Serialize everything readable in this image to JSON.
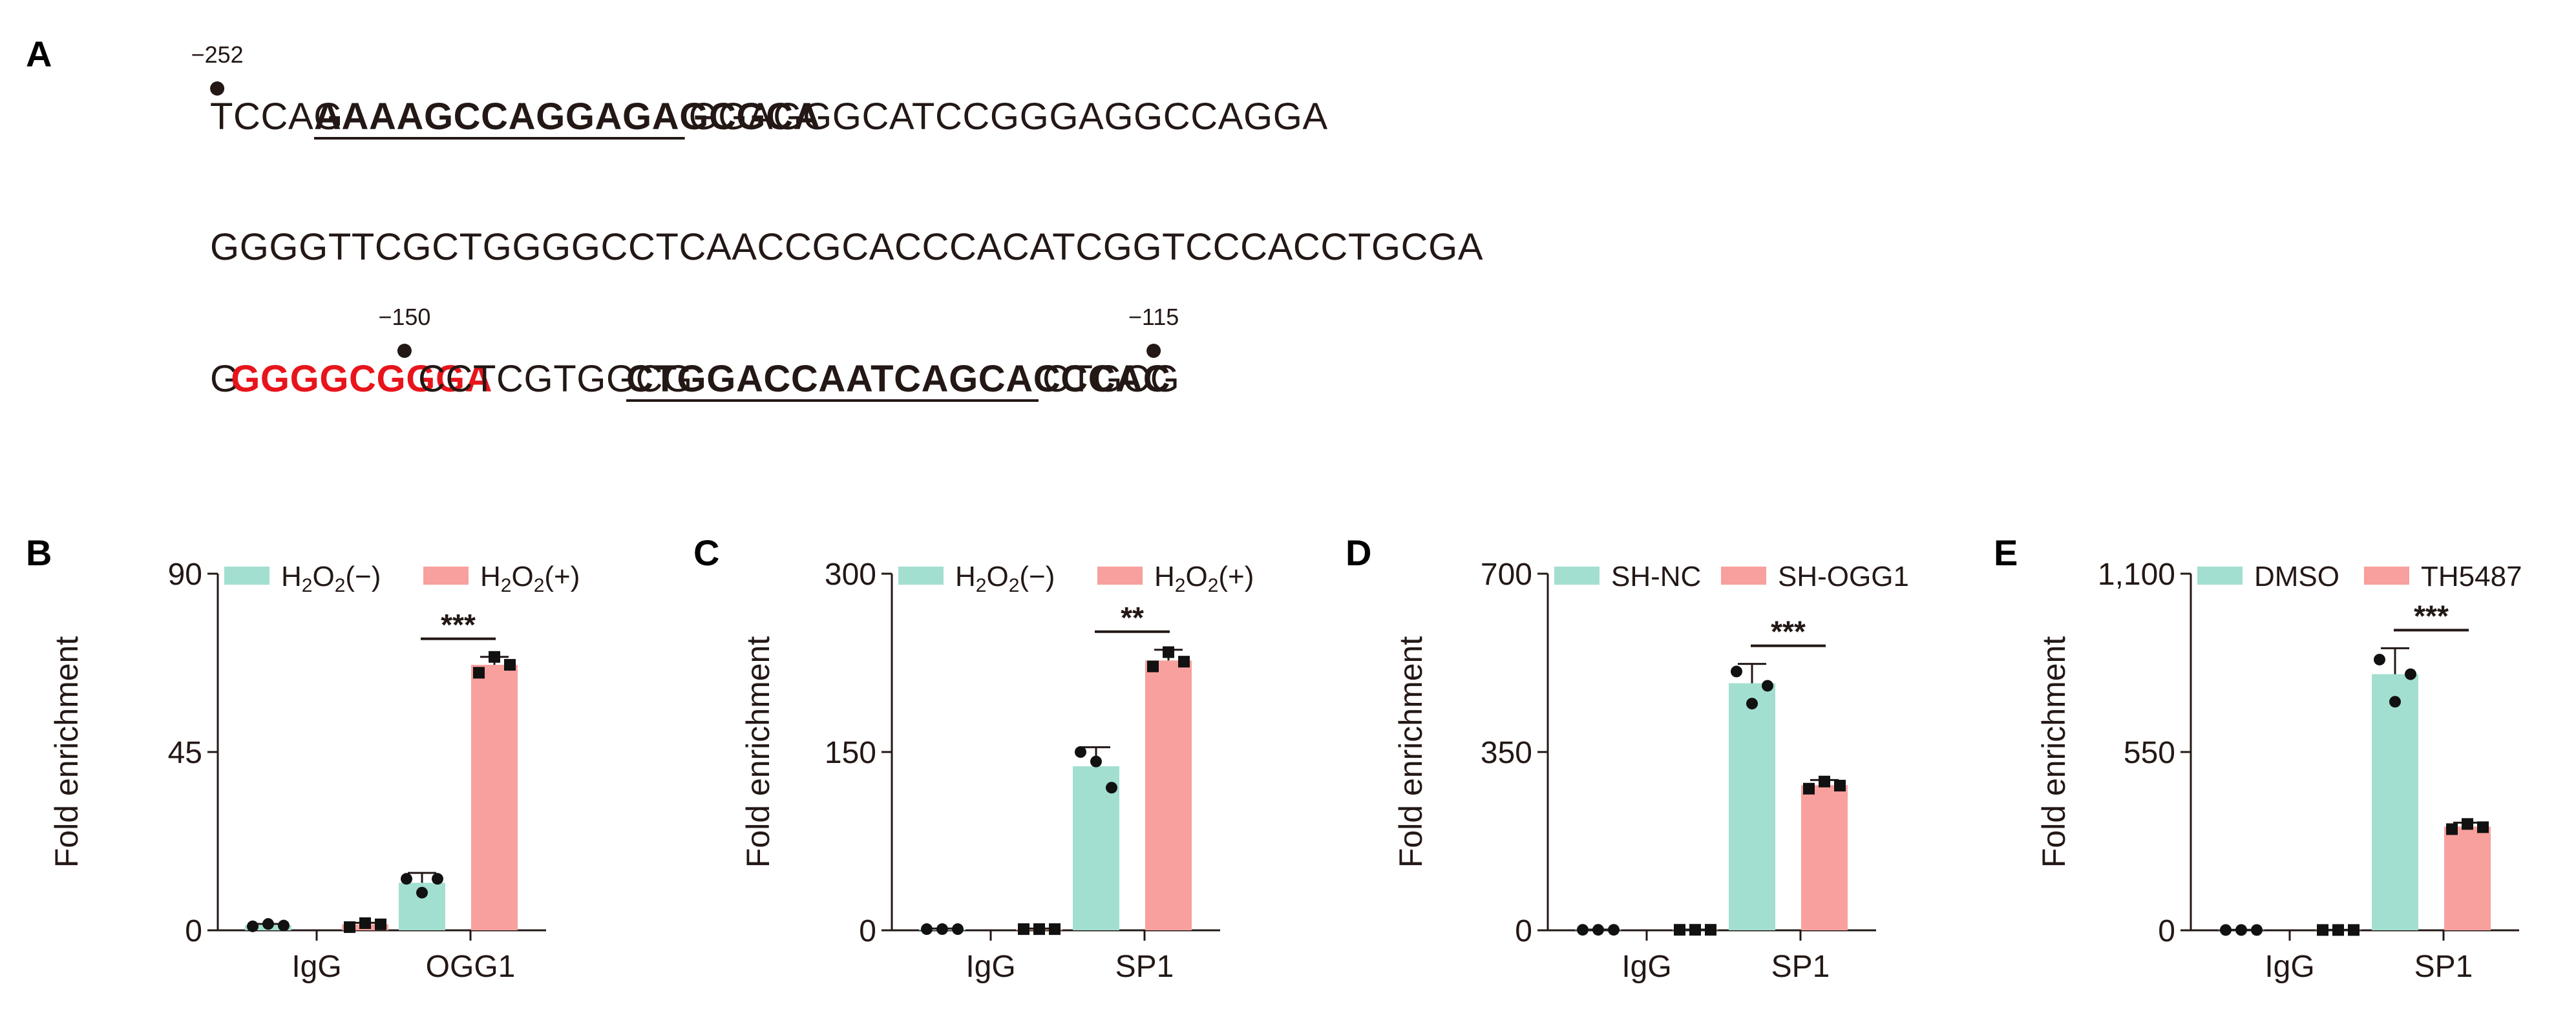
{
  "panel_labels": [
    "A",
    "B",
    "C",
    "D",
    "E"
  ],
  "sequence": {
    "lines": [
      [
        {
          "t": "TCCAG",
          "s": "plain"
        },
        {
          "t": "AAAAGCCAGGAGAGCGCA",
          "s": "primer"
        },
        {
          "t": "GGAGGGCATCCGGGAGGCCAGGA",
          "s": "plain"
        }
      ],
      [
        {
          "t": "GGGGTTCGCTGGGGCCTCAACCGCACCCACATCGGTCCCACCTGCGA",
          "s": "plain"
        }
      ],
      [
        {
          "t": "G",
          "s": "plain"
        },
        {
          "t": "GGGGCGGGA",
          "s": "sp1"
        },
        {
          "t": "CCTCGTGGCG",
          "s": "plain"
        },
        {
          "t": "CTGGACCAATCAGCACCCAC",
          "s": "primer"
        },
        {
          "t": "CTGCG",
          "s": "plain"
        }
      ]
    ],
    "markers": [
      {
        "label": "−252",
        "line": 0,
        "index": 0
      },
      {
        "label": "−150",
        "line": 2,
        "index": 9
      },
      {
        "label": "−115",
        "line": 2,
        "index": 45
      }
    ],
    "colors": {
      "plain": "#231815",
      "primer": "#231815",
      "sp1": "#e8141b"
    }
  },
  "colors": {
    "series1": "#a2dfd0",
    "series2": "#f8a09e",
    "axis": "#231815",
    "point": "#111111"
  },
  "chart_data": [
    {
      "panel": "B",
      "type": "bar",
      "ylabel": "Fold enrichment",
      "ylim": [
        0,
        90
      ],
      "yticks": [
        "0",
        "45",
        "90"
      ],
      "ytick_values": [
        0,
        45,
        90
      ],
      "categories": [
        "IgG",
        "OGG1"
      ],
      "series": [
        {
          "name": "H2O2(−)",
          "name_parts": [
            "H",
            "2",
            "O",
            "2",
            "(−)"
          ],
          "values": [
            1.3,
            12
          ],
          "error": [
            0.3,
            2.5
          ],
          "points": [
            [
              1.0,
              1.6,
              1.2
            ],
            [
              13,
              9.5,
              13
            ]
          ],
          "marker": "circle"
        },
        {
          "name": "H2O2(+)",
          "name_parts": [
            "H",
            "2",
            "O",
            "2",
            "(+)"
          ],
          "values": [
            1.5,
            67
          ],
          "error": [
            0.4,
            2.0
          ],
          "points": [
            [
              0.8,
              1.8,
              1.5
            ],
            [
              65,
              69,
              67
            ]
          ],
          "marker": "square"
        }
      ],
      "significance": [
        {
          "category": "OGG1",
          "label": "***"
        }
      ]
    },
    {
      "panel": "C",
      "type": "bar",
      "ylabel": "Fold enrichment",
      "ylim": [
        0,
        300
      ],
      "yticks": [
        "0",
        "150",
        "300"
      ],
      "ytick_values": [
        0,
        150,
        300
      ],
      "categories": [
        "IgG",
        "SP1"
      ],
      "series": [
        {
          "name": "H2O2(−)",
          "name_parts": [
            "H",
            "2",
            "O",
            "2",
            "(−)"
          ],
          "values": [
            1,
            138
          ],
          "error": [
            0.5,
            16
          ],
          "points": [
            [
              1,
              1,
              1
            ],
            [
              150,
              142,
              120
            ]
          ],
          "marker": "circle"
        },
        {
          "name": "H2O2(+)",
          "name_parts": [
            "H",
            "2",
            "O",
            "2",
            "(+)"
          ],
          "values": [
            1,
            227
          ],
          "error": [
            0.5,
            9
          ],
          "points": [
            [
              1,
              1,
              1
            ],
            [
              222,
              234,
              226
            ]
          ],
          "marker": "square"
        }
      ],
      "significance": [
        {
          "category": "SP1",
          "label": "**"
        }
      ]
    },
    {
      "panel": "D",
      "type": "bar",
      "ylabel": "Fold enrichment",
      "ylim": [
        0,
        700
      ],
      "yticks": [
        "0",
        "350",
        "700"
      ],
      "ytick_values": [
        0,
        350,
        700
      ],
      "categories": [
        "IgG",
        "SP1"
      ],
      "series": [
        {
          "name": "SH-NC",
          "values": [
            1,
            485
          ],
          "error": [
            0.5,
            38
          ],
          "points": [
            [
              1,
              1,
              1
            ],
            [
              508,
              445,
              480
            ]
          ],
          "marker": "circle"
        },
        {
          "name": "SH-OGG1",
          "values": [
            1,
            285
          ],
          "error": [
            0.5,
            10
          ],
          "points": [
            [
              1,
              1,
              1
            ],
            [
              278,
              292,
              284
            ]
          ],
          "marker": "square"
        }
      ],
      "significance": [
        {
          "category": "SP1",
          "label": "***"
        }
      ]
    },
    {
      "panel": "E",
      "type": "bar",
      "ylabel": "Fold enrichment",
      "ylim": [
        0,
        1100
      ],
      "yticks": [
        "0",
        "550",
        "1,100"
      ],
      "ytick_values": [
        0,
        550,
        1100
      ],
      "categories": [
        "IgG",
        "SP1"
      ],
      "series": [
        {
          "name": "DMSO",
          "values": [
            1,
            790
          ],
          "error": [
            0.5,
            80
          ],
          "points": [
            [
              1,
              1,
              1
            ],
            [
              835,
              705,
              790
            ]
          ],
          "marker": "circle"
        },
        {
          "name": "TH5487",
          "values": [
            1,
            320
          ],
          "error": [
            0.5,
            12
          ],
          "points": [
            [
              1,
              1,
              1
            ],
            [
              312,
              328,
              318
            ]
          ],
          "marker": "square"
        }
      ],
      "significance": [
        {
          "category": "SP1",
          "label": "***"
        }
      ]
    }
  ]
}
